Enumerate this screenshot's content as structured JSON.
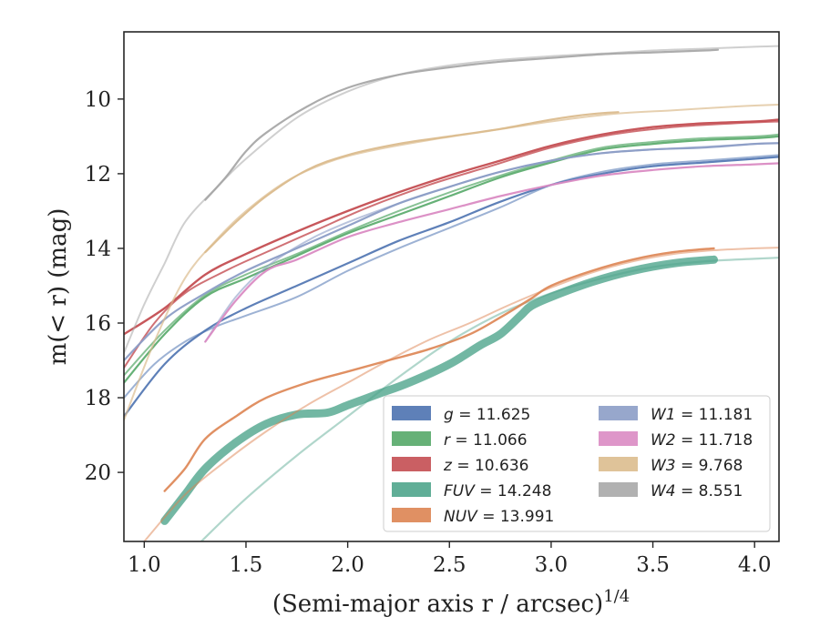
{
  "chart_data": {
    "type": "line",
    "xlabel": "(Semi-major axis r / arcsec)",
    "xlabel_exponent": "1/4",
    "ylabel": "m(< r) (mag)",
    "xlim": [
      0.9,
      4.12
    ],
    "ylim": [
      21.85,
      8.2
    ],
    "y_inverted": true,
    "grid": false,
    "legend_position": "lower-right",
    "xticks": [
      "1.0",
      "1.5",
      "2.0",
      "2.5",
      "3.0",
      "3.5",
      "4.0"
    ],
    "yticks": [
      "10",
      "12",
      "14",
      "16",
      "18",
      "20"
    ],
    "series": [
      {
        "name": "g = 11.625",
        "var": "g",
        "value": "11.625",
        "color": "#4c72b0",
        "curves": [
          {
            "w": 2.2,
            "a": 0.9,
            "x": [
              0.9,
              1.1,
              1.3,
              1.5,
              1.75,
              2.0,
              2.25,
              2.5,
              2.75,
              3.0,
              3.25,
              3.5,
              3.75,
              4.0,
              4.12
            ],
            "y": [
              18.5,
              17.1,
              16.2,
              15.6,
              15.0,
              14.4,
              13.8,
              13.3,
              12.75,
              12.3,
              12.0,
              11.8,
              11.7,
              11.6,
              11.55
            ]
          },
          {
            "w": 2.0,
            "a": 0.55,
            "x": [
              0.9,
              1.05,
              1.2,
              1.35,
              1.5,
              1.75,
              2.0,
              2.25,
              2.5,
              2.75,
              3.0,
              3.25,
              3.5,
              3.75,
              4.0,
              4.12
            ],
            "y": [
              18.0,
              17.1,
              16.5,
              16.1,
              15.8,
              15.3,
              14.6,
              14.0,
              13.45,
              12.9,
              12.3,
              11.95,
              11.75,
              11.65,
              11.55,
              11.5
            ]
          }
        ]
      },
      {
        "name": "r = 11.066",
        "var": "r",
        "value": "11.066",
        "color": "#55a868",
        "curves": [
          {
            "w": 2.2,
            "a": 0.9,
            "x": [
              0.9,
              1.1,
              1.3,
              1.5,
              1.75,
              2.0,
              2.25,
              2.5,
              2.75,
              3.0,
              3.25,
              3.5,
              3.75,
              4.0,
              4.12
            ],
            "y": [
              17.6,
              16.3,
              15.3,
              14.8,
              14.2,
              13.6,
              13.1,
              12.6,
              12.1,
              11.7,
              11.35,
              11.2,
              11.1,
              11.05,
              11.0
            ]
          },
          {
            "w": 2.0,
            "a": 0.7,
            "x": [
              0.9,
              1.1,
              1.3,
              1.5,
              1.75,
              2.0,
              2.25,
              2.5,
              2.75,
              3.0,
              3.25,
              3.5,
              3.75,
              4.0,
              4.12
            ],
            "y": [
              17.4,
              16.2,
              15.25,
              14.7,
              14.15,
              13.55,
              13.0,
              12.5,
              12.05,
              11.65,
              11.3,
              11.15,
              11.05,
              11.0,
              10.95
            ]
          }
        ]
      },
      {
        "name": "z = 10.636",
        "var": "z",
        "value": "10.636",
        "color": "#c44e52",
        "curves": [
          {
            "w": 2.4,
            "a": 0.95,
            "x": [
              0.9,
              1.1,
              1.3,
              1.5,
              1.75,
              2.0,
              2.25,
              2.5,
              2.75,
              3.0,
              3.25,
              3.5,
              3.75,
              4.0,
              4.12
            ],
            "y": [
              16.3,
              15.6,
              14.7,
              14.15,
              13.55,
              13.0,
              12.5,
              12.05,
              11.65,
              11.25,
              10.95,
              10.75,
              10.65,
              10.6,
              10.55
            ]
          },
          {
            "w": 2.0,
            "a": 0.8,
            "x": [
              0.9,
              1.05,
              1.2,
              1.4,
              1.6,
              1.85,
              2.1,
              2.4,
              2.7,
              3.0,
              3.3,
              3.6,
              3.9,
              4.12
            ],
            "y": [
              17.2,
              16.0,
              15.2,
              14.6,
              14.1,
              13.5,
              12.9,
              12.3,
              11.8,
              11.3,
              10.95,
              10.75,
              10.65,
              10.6
            ]
          }
        ]
      },
      {
        "name": "FUV = 14.248",
        "var": "FUV",
        "value": "14.248",
        "color": "#4fa58c",
        "curves": [
          {
            "w": 9,
            "a": 0.8,
            "x": [
              1.1,
              1.2,
              1.3,
              1.45,
              1.6,
              1.75,
              1.9,
              2.0,
              2.15,
              2.3,
              2.5,
              2.65,
              2.75,
              2.85,
              2.9,
              3.0,
              3.2,
              3.4,
              3.6,
              3.8
            ],
            "y": [
              21.3,
              20.6,
              19.9,
              19.2,
              18.7,
              18.45,
              18.4,
              18.2,
              17.9,
              17.6,
              17.1,
              16.6,
              16.3,
              15.8,
              15.55,
              15.3,
              14.9,
              14.6,
              14.4,
              14.3
            ]
          },
          {
            "w": 2.2,
            "a": 0.45,
            "x": [
              1.28,
              1.5,
              1.75,
              2.0,
              2.25,
              2.5,
              2.75,
              3.0,
              3.25,
              3.5,
              3.75,
              4.0,
              4.12
            ],
            "y": [
              21.85,
              20.7,
              19.55,
              18.5,
              17.45,
              16.5,
              15.75,
              15.2,
              14.8,
              14.5,
              14.35,
              14.28,
              14.25
            ]
          }
        ]
      },
      {
        "name": "NUV = 13.991",
        "var": "NUV",
        "value": "13.991",
        "color": "#dd8452",
        "curves": [
          {
            "w": 2.4,
            "a": 0.9,
            "x": [
              1.1,
              1.2,
              1.3,
              1.45,
              1.6,
              1.8,
              2.0,
              2.2,
              2.4,
              2.6,
              2.75,
              2.9,
              3.0,
              3.2,
              3.4,
              3.6,
              3.8
            ],
            "y": [
              20.5,
              19.9,
              19.1,
              18.5,
              18.0,
              17.6,
              17.3,
              17.0,
              16.7,
              16.3,
              15.85,
              15.35,
              15.0,
              14.6,
              14.3,
              14.1,
              14.0
            ]
          },
          {
            "w": 2.0,
            "a": 0.5,
            "x": [
              1.0,
              1.2,
              1.4,
              1.6,
              1.8,
              2.0,
              2.2,
              2.4,
              2.6,
              2.8,
              3.0,
              3.2,
              3.4,
              3.6,
              3.8,
              4.0,
              4.12
            ],
            "y": [
              21.85,
              20.6,
              19.7,
              18.9,
              18.2,
              17.6,
              17.0,
              16.45,
              16.0,
              15.5,
              15.05,
              14.65,
              14.35,
              14.15,
              14.05,
              14.0,
              13.98
            ]
          }
        ]
      },
      {
        "name": "W1 = 11.181",
        "var": "W1",
        "value": "11.181",
        "color": "#8c9dc6",
        "curves": [
          {
            "w": 2.2,
            "a": 0.95,
            "x": [
              0.9,
              1.1,
              1.3,
              1.5,
              1.75,
              2.0,
              2.25,
              2.5,
              2.75,
              3.0,
              3.25,
              3.5,
              3.75,
              4.0,
              4.12
            ],
            "y": [
              17.0,
              15.9,
              15.2,
              14.6,
              14.0,
              13.4,
              12.8,
              12.35,
              11.95,
              11.65,
              11.45,
              11.35,
              11.3,
              11.2,
              11.18
            ]
          },
          {
            "w": 2.0,
            "a": 0.6,
            "x": [
              1.3,
              1.45,
              1.6,
              1.8,
              2.0,
              2.25,
              2.5,
              2.75,
              3.0,
              3.25,
              3.5,
              3.75,
              4.0,
              4.12
            ],
            "y": [
              16.5,
              15.3,
              14.5,
              13.8,
              13.3,
              12.8,
              12.35,
              11.95,
              11.65,
              11.45,
              11.35,
              11.28,
              11.2,
              11.18
            ]
          }
        ]
      },
      {
        "name": "W2 = 11.718",
        "var": "W2",
        "value": "11.718",
        "color": "#da8bc3",
        "curves": [
          {
            "w": 2.2,
            "a": 0.95,
            "x": [
              1.3,
              1.45,
              1.6,
              1.75,
              2.0,
              2.25,
              2.5,
              2.75,
              3.0,
              3.25,
              3.5,
              3.75,
              4.0,
              4.12
            ],
            "y": [
              16.5,
              15.4,
              14.6,
              14.3,
              13.7,
              13.3,
              12.95,
              12.6,
              12.3,
              12.05,
              11.9,
              11.8,
              11.75,
              11.72
            ]
          }
        ]
      },
      {
        "name": "W3 = 9.768",
        "var": "W3",
        "value": "9.768",
        "color": "#dbbc8e",
        "curves": [
          {
            "w": 2.2,
            "a": 0.95,
            "x": [
              1.3,
              1.45,
              1.6,
              1.8,
              2.0,
              2.25,
              2.5,
              2.75,
              3.0,
              3.2,
              3.33
            ],
            "y": [
              14.1,
              13.3,
              12.6,
              11.9,
              11.5,
              11.2,
              11.0,
              10.8,
              10.55,
              10.4,
              10.35
            ]
          },
          {
            "w": 2.0,
            "a": 0.7,
            "x": [
              0.9,
              1.05,
              1.2,
              1.35,
              1.5,
              1.7,
              1.9,
              2.1,
              2.4,
              2.7,
              3.0,
              3.3,
              3.6,
              3.9,
              4.12
            ],
            "y": [
              18.6,
              16.5,
              14.8,
              13.8,
              13.0,
              12.2,
              11.7,
              11.4,
              11.1,
              10.85,
              10.6,
              10.4,
              10.3,
              10.2,
              10.15
            ]
          }
        ]
      },
      {
        "name": "W4 = 8.551",
        "var": "W4",
        "value": "8.551",
        "color": "#a8a8a8",
        "curves": [
          {
            "w": 2.2,
            "a": 0.95,
            "x": [
              1.3,
              1.4,
              1.5,
              1.6,
              1.8,
              2.0,
              2.25,
              2.5,
              2.75,
              3.0,
              3.25,
              3.5,
              3.75,
              3.82
            ],
            "y": [
              12.7,
              12.1,
              11.4,
              10.9,
              10.2,
              9.7,
              9.35,
              9.15,
              9.0,
              8.9,
              8.8,
              8.75,
              8.7,
              8.68
            ]
          },
          {
            "w": 2.0,
            "a": 0.55,
            "x": [
              0.9,
              1.0,
              1.1,
              1.2,
              1.35,
              1.5,
              1.75,
              2.0,
              2.25,
              2.5,
              2.75,
              3.0,
              3.25,
              3.5,
              3.75,
              4.0,
              4.12
            ],
            "y": [
              16.8,
              15.5,
              14.4,
              13.3,
              12.4,
              11.6,
              10.5,
              9.8,
              9.35,
              9.1,
              8.95,
              8.85,
              8.78,
              8.7,
              8.65,
              8.6,
              8.58
            ]
          }
        ]
      }
    ]
  }
}
